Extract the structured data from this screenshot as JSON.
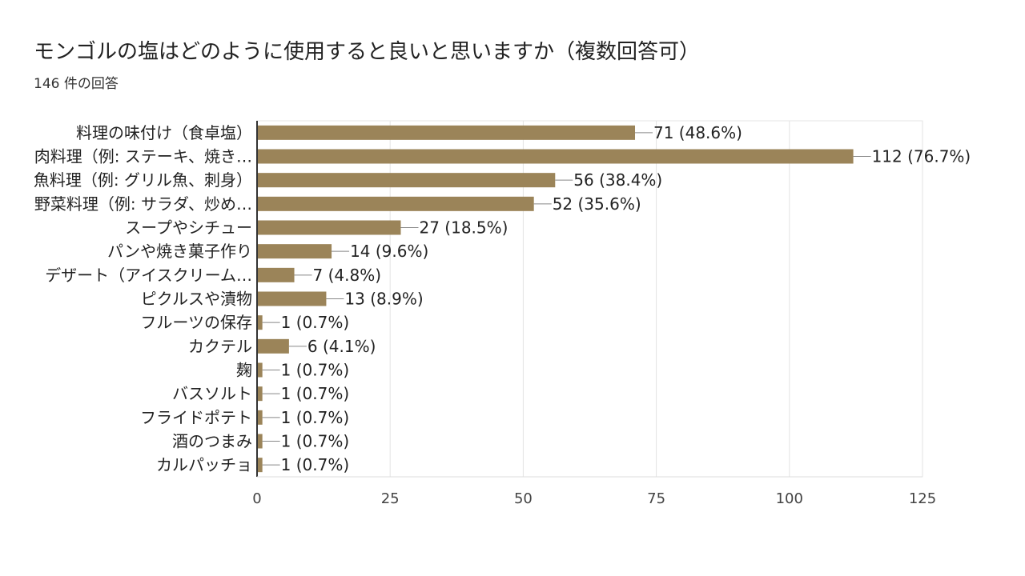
{
  "title": "モンゴルの塩はどのように使用すると良いと思いますか（複数回答可）",
  "subtitle": "146 件の回答",
  "chart_data": {
    "type": "bar",
    "orientation": "horizontal",
    "categories": [
      "料理の味付け（食卓塩）",
      "肉料理（例: ステーキ、焼き…",
      "魚料理（例: グリル魚、刺身）",
      "野菜料理（例: サラダ、炒め…",
      "スープやシチュー",
      "パンや焼き菓子作り",
      "デザート（アイスクリーム…",
      "ピクルスや漬物",
      "フルーツの保存",
      "カクテル",
      "麹",
      "バスソルト",
      "フライドポテト",
      "酒のつまみ",
      "カルパッチョ"
    ],
    "values": [
      71,
      112,
      56,
      52,
      27,
      14,
      7,
      13,
      1,
      6,
      1,
      1,
      1,
      1,
      1
    ],
    "labels": [
      "71 (48.6%)",
      "112 (76.7%)",
      "56 (38.4%)",
      "52 (35.6%)",
      "27 (18.5%)",
      "14 (9.6%)",
      "7 (4.8%)",
      "13 (8.9%)",
      "1 (0.7%)",
      "6 (4.1%)",
      "1 (0.7%)",
      "1 (0.7%)",
      "1 (0.7%)",
      "1 (0.7%)",
      "1 (0.7%)"
    ],
    "xlim": [
      0,
      125
    ],
    "xticks": [
      0,
      25,
      50,
      75,
      100,
      125
    ],
    "xtick_labels": [
      "0",
      "25",
      "50",
      "75",
      "100",
      "125"
    ],
    "bar_color": "#9b8459",
    "grid": true
  }
}
